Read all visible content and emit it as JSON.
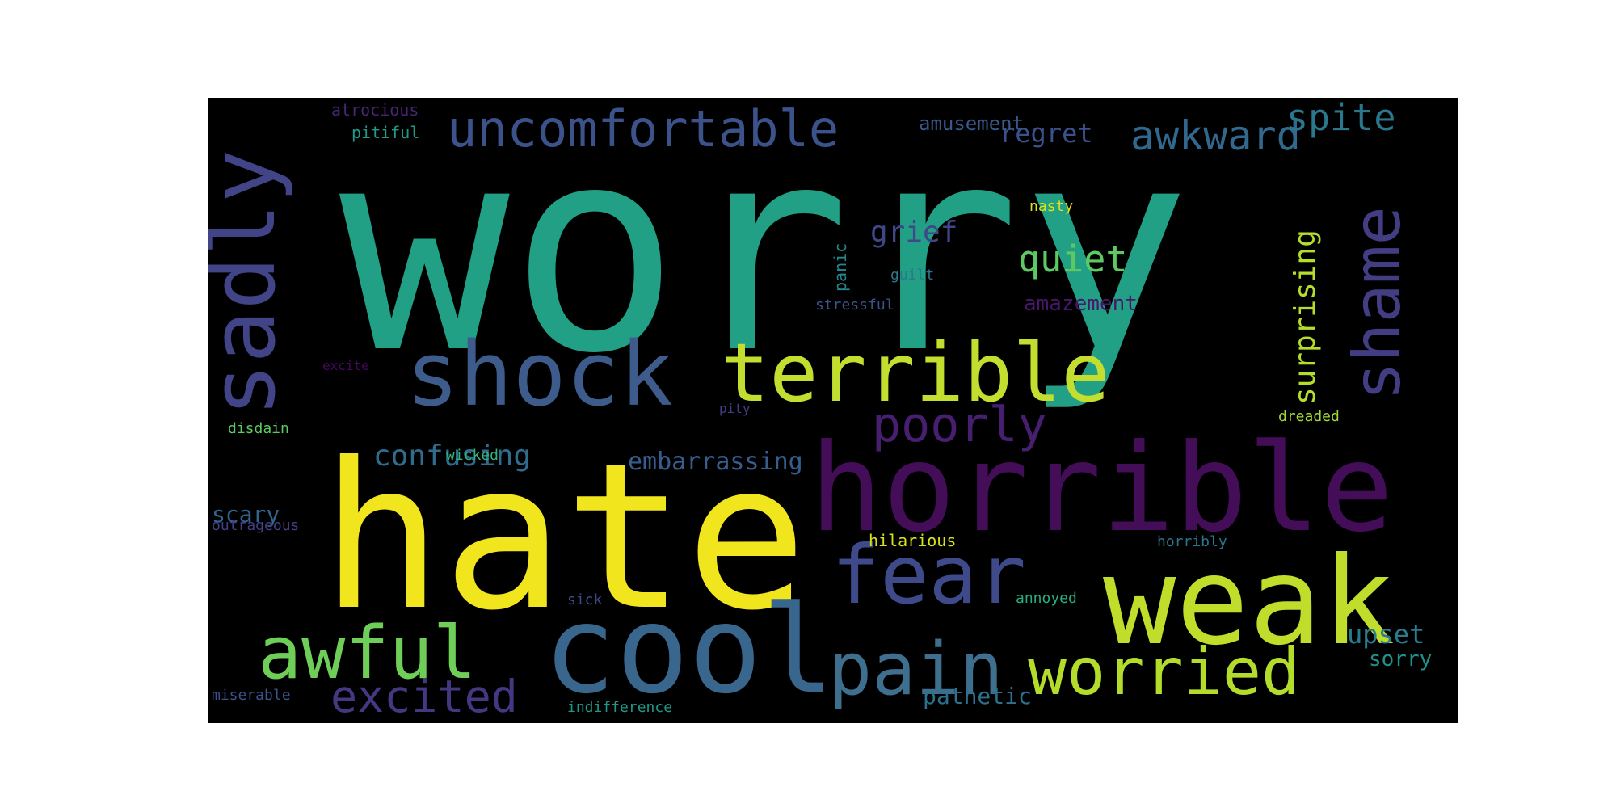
{
  "background_color": "#000000",
  "words": [
    {
      "text": "worry",
      "color": "#21a085"
    },
    {
      "text": "hate",
      "color": "#f1e51d"
    },
    {
      "text": "horrible",
      "color": "#440d58"
    },
    {
      "text": "cool",
      "color": "#39668d"
    },
    {
      "text": "weak",
      "color": "#c0dd2c"
    },
    {
      "text": "shock",
      "color": "#3d5c8b"
    },
    {
      "text": "terrible",
      "color": "#c4de30"
    },
    {
      "text": "sadly",
      "color": "#414487"
    },
    {
      "text": "fear",
      "color": "#3e4a89"
    },
    {
      "text": "awful",
      "color": "#6ece58"
    },
    {
      "text": "pain",
      "color": "#3e6f8e"
    },
    {
      "text": "worried",
      "color": "#b4dd2b"
    },
    {
      "text": "uncomfortable",
      "color": "#3b528b"
    },
    {
      "text": "shame",
      "color": "#433d84"
    },
    {
      "text": "excited",
      "color": "#453781"
    },
    {
      "text": "poorly",
      "color": "#481f70"
    },
    {
      "text": "awkward",
      "color": "#31688e"
    },
    {
      "text": "spite",
      "color": "#2a788e"
    },
    {
      "text": "quiet",
      "color": "#5ec962"
    },
    {
      "text": "surprising",
      "color": "#b5de2b"
    },
    {
      "text": "grief",
      "color": "#3f4788"
    },
    {
      "text": "confusing",
      "color": "#2f6c8e"
    },
    {
      "text": "regret",
      "color": "#3b518b"
    },
    {
      "text": "embarrassing",
      "color": "#365d8d"
    },
    {
      "text": "upset",
      "color": "#287c8e"
    },
    {
      "text": "scary",
      "color": "#31648e"
    },
    {
      "text": "amazement",
      "color": "#481769"
    },
    {
      "text": "sorry",
      "color": "#20928c"
    },
    {
      "text": "pathetic",
      "color": "#2c718e"
    },
    {
      "text": "amusement",
      "color": "#38598c"
    },
    {
      "text": "atrocious",
      "color": "#482576"
    },
    {
      "text": "pitiful",
      "color": "#1f9a8a"
    },
    {
      "text": "panic",
      "color": "#23898e"
    },
    {
      "text": "nasty",
      "color": "#dde318"
    },
    {
      "text": "guilt",
      "color": "#2a788e"
    },
    {
      "text": "stressful",
      "color": "#3b528b"
    },
    {
      "text": "excite",
      "color": "#46085c"
    },
    {
      "text": "pity",
      "color": "#433e85"
    },
    {
      "text": "disdain",
      "color": "#5ec962"
    },
    {
      "text": "dreaded",
      "color": "#a2da37"
    },
    {
      "text": "wicked",
      "color": "#2fb47c"
    },
    {
      "text": "outrageous",
      "color": "#423f85"
    },
    {
      "text": "hilarious",
      "color": "#d8e219"
    },
    {
      "text": "horribly",
      "color": "#2b758e"
    },
    {
      "text": "annoyed",
      "color": "#27ad81"
    },
    {
      "text": "sick",
      "color": "#3e4c8a"
    },
    {
      "text": "miserable",
      "color": "#3a538b"
    },
    {
      "text": "indifference",
      "color": "#1f988b"
    }
  ]
}
